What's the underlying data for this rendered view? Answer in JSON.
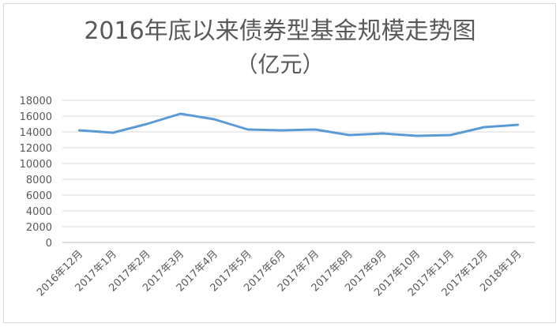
{
  "chart_data": {
    "type": "line",
    "title": "2016年底以来债券型基金规模走势图",
    "subtitle": "（亿元）",
    "xlabel": "",
    "ylabel": "",
    "ylim": [
      0,
      18000
    ],
    "yticks": [
      0,
      2000,
      4000,
      6000,
      8000,
      10000,
      12000,
      14000,
      16000,
      18000
    ],
    "grid": true,
    "legend": "none",
    "categories": [
      "2016年12月",
      "2017年1月",
      "2017年2月",
      "2017年3月",
      "2017年4月",
      "2017年5月",
      "2017年6月",
      "2017年7月",
      "2017年8月",
      "2017年9月",
      "2017年10月",
      "2017年11月",
      "2017年12月",
      "2018年1月"
    ],
    "series": [
      {
        "values": [
          14200,
          13900,
          15000,
          16300,
          15600,
          14300,
          14200,
          14300,
          13600,
          13800,
          13500,
          13600,
          14600,
          14900
        ],
        "color": "#5b9bd5"
      }
    ]
  }
}
